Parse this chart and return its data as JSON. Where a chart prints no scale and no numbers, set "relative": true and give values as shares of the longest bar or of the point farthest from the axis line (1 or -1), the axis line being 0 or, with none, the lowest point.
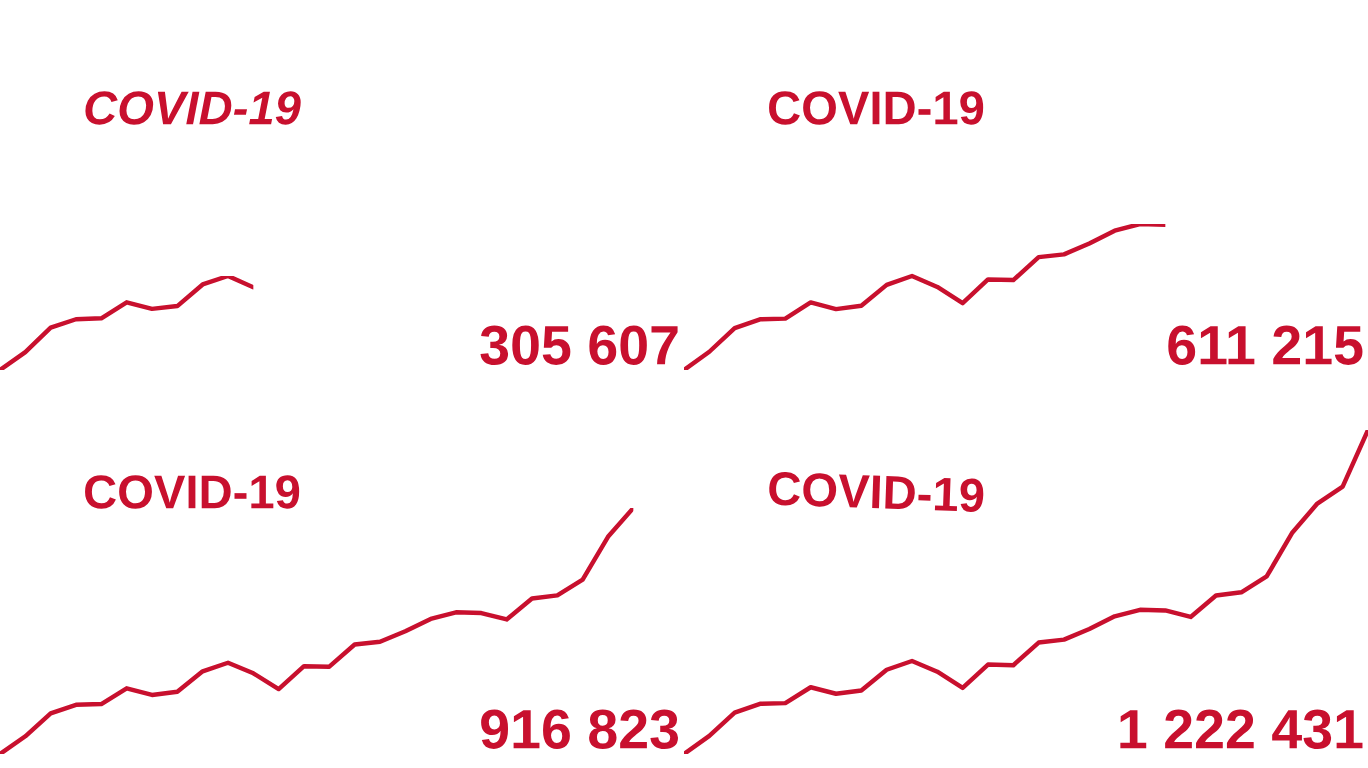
{
  "chart_data": [
    {
      "type": "line",
      "title": "COVID-19",
      "relative": true,
      "color": "#c8102e",
      "categories": [
        null,
        null,
        null,
        null,
        null,
        null,
        null,
        null,
        null,
        null,
        null
      ],
      "values": [
        0,
        0.19,
        0.45,
        0.54,
        0.55,
        0.72,
        0.65,
        0.68,
        0.91,
        1,
        0.88
      ],
      "annotations": [
        "305 607"
      ]
    },
    {
      "type": "line",
      "title": "COVID-19",
      "relative": true,
      "color": "#c8102e",
      "categories": [
        null,
        null,
        null,
        null,
        null,
        null,
        null,
        null,
        null,
        null,
        null,
        null,
        null,
        null,
        null,
        null,
        null,
        null,
        null,
        null
      ],
      "values": [
        0,
        0.125,
        0.287,
        0.347,
        0.352,
        0.463,
        0.417,
        0.44,
        0.583,
        0.644,
        0.569,
        0.458,
        0.62,
        0.616,
        0.773,
        0.792,
        0.866,
        0.954,
        1,
        0.995
      ],
      "annotations": [
        "611 215"
      ]
    },
    {
      "type": "line",
      "title": "COVID-19",
      "relative": true,
      "color": "#c8102e",
      "categories": [
        null,
        null,
        null,
        null,
        null,
        null,
        null,
        null,
        null,
        null,
        null,
        null,
        null,
        null,
        null,
        null,
        null,
        null,
        null,
        null,
        null,
        null,
        null,
        null,
        null,
        null
      ],
      "values": [
        0,
        0.072,
        0.165,
        0.2,
        0.203,
        0.267,
        0.24,
        0.253,
        0.336,
        0.371,
        0.328,
        0.264,
        0.357,
        0.355,
        0.445,
        0.456,
        0.499,
        0.549,
        0.576,
        0.573,
        0.547,
        0.632,
        0.645,
        0.709,
        0.883,
        1
      ],
      "annotations": [
        "916 823"
      ]
    },
    {
      "type": "line",
      "title": "COVID-19",
      "relative": true,
      "color": "#c8102e",
      "categories": [
        null,
        null,
        null,
        null,
        null,
        null,
        null,
        null,
        null,
        null,
        null,
        null,
        null,
        null,
        null,
        null,
        null,
        null,
        null,
        null,
        null,
        null,
        null,
        null,
        null,
        null,
        null,
        null
      ],
      "values": [
        0,
        0.056,
        0.128,
        0.155,
        0.157,
        0.206,
        0.186,
        0.196,
        0.26,
        0.287,
        0.254,
        0.204,
        0.276,
        0.274,
        0.344,
        0.353,
        0.386,
        0.425,
        0.445,
        0.443,
        0.423,
        0.489,
        0.499,
        0.548,
        0.682,
        0.773,
        0.825,
        1
      ],
      "annotations": [
        "1 222 431"
      ]
    }
  ]
}
